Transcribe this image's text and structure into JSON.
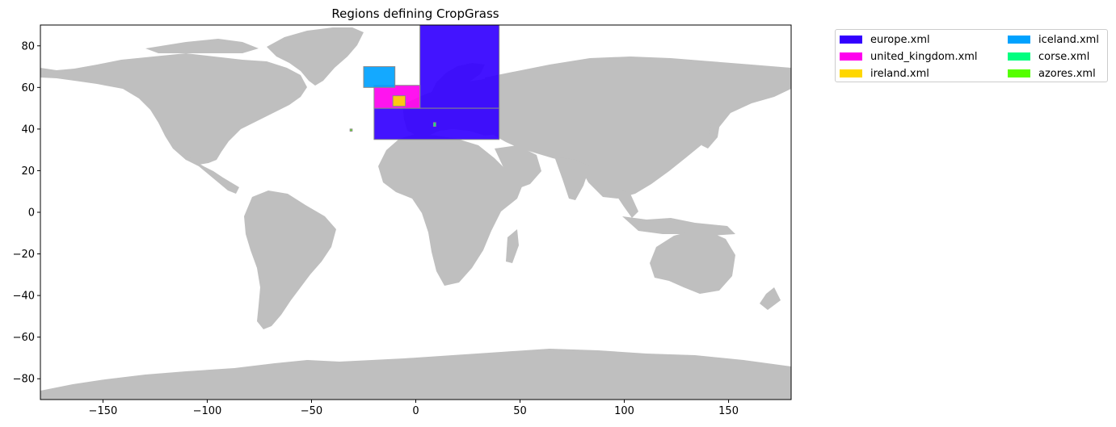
{
  "figure": {
    "title": "Regions defining CropGrass"
  },
  "chart_data": {
    "type": "map",
    "title": "Regions defining CropGrass",
    "xlim": [
      -180,
      180
    ],
    "ylim": [
      -90,
      90
    ],
    "x_ticks": [
      -150,
      -100,
      -50,
      0,
      50,
      100,
      150
    ],
    "y_ticks": [
      80,
      60,
      40,
      20,
      0,
      -20,
      -40,
      -60,
      -80
    ],
    "x_tick_labels": [
      "−150",
      "−100",
      "−50",
      "0",
      "50",
      "100",
      "150"
    ],
    "y_tick_labels": [
      "80",
      "60",
      "40",
      "20",
      "0",
      "−20",
      "−40",
      "−60",
      "−80"
    ],
    "land_color": "#bfbfbf",
    "region_edge_color": "#888888",
    "grid": false,
    "legend_position": "outside-top-right",
    "regions": [
      {
        "name": "europe.xml",
        "color": "#3300ff",
        "boxes": [
          {
            "lon_min": 2,
            "lon_max": 40,
            "lat_min": 50,
            "lat_max": 90
          },
          {
            "lon_min": -20,
            "lon_max": 40,
            "lat_min": 35,
            "lat_max": 50
          }
        ]
      },
      {
        "name": "united_kingdom.xml",
        "color": "#ff00ee",
        "boxes": [
          {
            "lon_min": -20,
            "lon_max": 2,
            "lat_min": 50,
            "lat_max": 61
          }
        ]
      },
      {
        "name": "ireland.xml",
        "color": "#ffd700",
        "boxes": [
          {
            "lon_min": -11,
            "lon_max": -5,
            "lat_min": 51,
            "lat_max": 56
          }
        ]
      },
      {
        "name": "iceland.xml",
        "color": "#00a2ff",
        "boxes": [
          {
            "lon_min": -25,
            "lon_max": -10,
            "lat_min": 60,
            "lat_max": 70
          }
        ]
      },
      {
        "name": "corse.xml",
        "color": "#00ff80",
        "boxes": [
          {
            "lon_min": 8.5,
            "lon_max": 9.6,
            "lat_min": 41.3,
            "lat_max": 43.1
          }
        ]
      },
      {
        "name": "azores.xml",
        "color": "#55ff00",
        "boxes": [
          {
            "lon_min": -31.5,
            "lon_max": -30.5,
            "lat_min": 39,
            "lat_max": 40
          }
        ]
      }
    ]
  }
}
